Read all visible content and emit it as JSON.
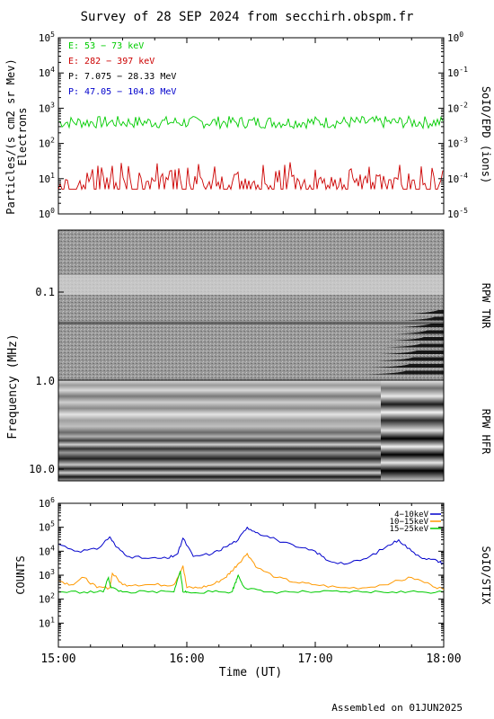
{
  "title": "Survey of 28 SEP 2024 from secchirh.obspm.fr",
  "footer": "Assembled on 01JUN2025",
  "chart_data": [
    {
      "type": "line",
      "panel": "SoIO/EPD particles",
      "ylabel_left": [
        "Particles/(s cm2 sr Mev)",
        "Electrons"
      ],
      "ylabel_right": "SoIO/EPD (ions)",
      "yscale": "log",
      "ylim": [
        1,
        100000
      ],
      "ylim_right": [
        1e-05,
        1
      ],
      "left_ticks": [
        "10^0",
        "10^1",
        "10^2",
        "10^3",
        "10^4",
        "10^5"
      ],
      "right_ticks": [
        "10^-5",
        "10^-4",
        "10^-3",
        "10^-2",
        "10^-1",
        "10^0"
      ],
      "legend": [
        {
          "label": "E: 53 − 73 keV",
          "color": "#00cc00"
        },
        {
          "label": "E: 282 − 397 keV",
          "color": "#cc0000"
        },
        {
          "label": "P: 7.075 − 28.33 MeV",
          "color": "#000000"
        },
        {
          "label": "P: 47.05 − 104.8 MeV",
          "color": "#0000cc"
        }
      ],
      "series": [
        {
          "name": "E: 53 − 73 keV",
          "color": "#00cc00",
          "typical": 400,
          "range": [
            200,
            650
          ]
        },
        {
          "name": "E: 282 − 397 keV",
          "color": "#cc0000",
          "typical": 8,
          "range": [
            5,
            30
          ]
        }
      ]
    },
    {
      "type": "heatmap",
      "panel": "RPW TNR",
      "ylabel": "Frequency (MHz)",
      "right_label": "RPW TNR",
      "yscale": "log",
      "yticks": [
        "0.1",
        "1.0"
      ]
    },
    {
      "type": "heatmap",
      "panel": "RPW HFR",
      "right_label": "RPW HFR",
      "yscale": "log",
      "yticks": [
        "10.0"
      ]
    },
    {
      "type": "line",
      "panel": "SoIO/STIX",
      "ylabel": "COUNTS",
      "right_label": "SoIO/STIX",
      "yscale": "log",
      "ylim": [
        1,
        1000000
      ],
      "yticks": [
        "10^1",
        "10^2",
        "10^3",
        "10^4",
        "10^5",
        "10^6"
      ],
      "xlabel": "Time (UT)",
      "x_ticks": [
        "15:00",
        "16:00",
        "17:00",
        "18:00"
      ],
      "x_range_hours": [
        15,
        18
      ],
      "series": [
        {
          "name": "4−10keV",
          "color": "#0000cc",
          "x": [
            15.0,
            15.15,
            15.3,
            15.4,
            15.45,
            15.55,
            15.7,
            15.85,
            15.93,
            15.97,
            16.05,
            16.2,
            16.3,
            16.4,
            16.47,
            16.55,
            16.7,
            16.85,
            17.0,
            17.1,
            17.25,
            17.4,
            17.55,
            17.65,
            17.75,
            17.85,
            17.95,
            18.0
          ],
          "y": [
            20000,
            10000,
            12000,
            40000,
            15000,
            6000,
            5000,
            5000,
            8000,
            35000,
            6000,
            8000,
            15000,
            30000,
            100000,
            60000,
            30000,
            15000,
            10000,
            4000,
            3000,
            5000,
            15000,
            30000,
            10000,
            5000,
            4000,
            3000
          ]
        },
        {
          "name": "10−15keV",
          "color": "#ff9900",
          "x": [
            15.0,
            15.1,
            15.2,
            15.3,
            15.4,
            15.42,
            15.5,
            15.6,
            15.75,
            15.9,
            15.97,
            16.0,
            16.1,
            16.2,
            16.3,
            16.35,
            16.4,
            16.47,
            16.55,
            16.7,
            16.85,
            17.0,
            17.2,
            17.4,
            17.6,
            17.75,
            17.9,
            18.0
          ],
          "y": [
            600,
            400,
            800,
            300,
            300,
            1200,
            400,
            400,
            400,
            400,
            2500,
            300,
            300,
            400,
            800,
            1500,
            3000,
            8000,
            2000,
            800,
            500,
            400,
            300,
            300,
            500,
            800,
            400,
            250
          ]
        },
        {
          "name": "15−25keV",
          "color": "#00cc00",
          "x": [
            15.0,
            15.2,
            15.35,
            15.39,
            15.41,
            15.5,
            15.7,
            15.9,
            15.95,
            15.97,
            16.0,
            16.2,
            16.35,
            16.38,
            16.4,
            16.45,
            16.6,
            16.8,
            17.0,
            17.2,
            17.4,
            17.6,
            17.8,
            18.0
          ],
          "y": [
            200,
            200,
            200,
            800,
            300,
            200,
            200,
            200,
            1500,
            200,
            200,
            200,
            200,
            500,
            1000,
            300,
            200,
            200,
            200,
            200,
            200,
            200,
            200,
            200
          ]
        }
      ]
    }
  ]
}
